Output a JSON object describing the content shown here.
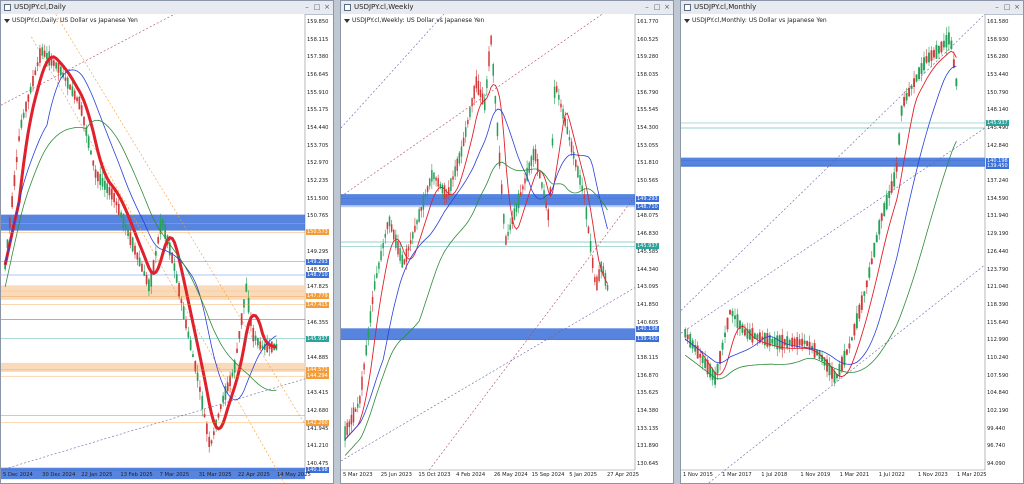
{
  "windows": [
    {
      "id": "daily",
      "title": "USDJPY.cl,Daily",
      "symbol_label": "USDJPY.cl,Daily:  US Dollar vs Japanese Yen",
      "y_labels": [
        "159.850",
        "158.115",
        "157.380",
        "156.645",
        "155.910",
        "155.175",
        "154.440",
        "153.705",
        "152.970",
        "152.235",
        "151.500",
        "150.765",
        "150.030",
        "149.295",
        "148.560",
        "147.825",
        "147.090",
        "146.355",
        "145.620",
        "144.885",
        "144.150",
        "143.415",
        "142.680",
        "141.945",
        "141.210",
        "140.475"
      ],
      "y_range": [
        140.2,
        160.1
      ],
      "x_labels": [
        "5 Dec 2024",
        "30 Dec 2024",
        "22 Jan 2025",
        "13 Feb 2025",
        "7 Mar 2025",
        "31 Mar 2025",
        "22 Apr 2025",
        "14 May 2025"
      ],
      "price_tags": [
        {
          "text": "150.573",
          "value": 150.573,
          "color": "#f39c3a"
        },
        {
          "text": "149.293",
          "value": 149.293,
          "color": "#3a6fd8"
        },
        {
          "text": "148.710",
          "value": 148.71,
          "color": "#3a6fd8"
        },
        {
          "text": "147.779",
          "value": 147.779,
          "color": "#f39c3a"
        },
        {
          "text": "147.415",
          "value": 147.415,
          "color": "#f39c3a"
        },
        {
          "text": "145.937",
          "value": 145.937,
          "color": "#2aa39a"
        },
        {
          "text": "144.571",
          "value": 144.571,
          "color": "#f39c3a"
        },
        {
          "text": "144.294",
          "value": 144.294,
          "color": "#f39c3a"
        },
        {
          "text": "142.260",
          "value": 142.26,
          "color": "#f39c3a"
        },
        {
          "text": "140.198",
          "value": 140.198,
          "color": "#3a6fd8"
        }
      ]
    },
    {
      "id": "weekly",
      "title": "USDJPY.cl,Weekly",
      "symbol_label": "USDJPY.cl,Weekly:  US Dollar vs Japanese Yen",
      "y_labels": [
        "161.770",
        "160.525",
        "159.280",
        "158.035",
        "156.790",
        "155.545",
        "154.300",
        "153.055",
        "151.810",
        "150.565",
        "149.320",
        "148.075",
        "146.830",
        "145.585",
        "144.340",
        "143.095",
        "141.850",
        "140.605",
        "139.360",
        "138.115",
        "136.870",
        "135.625",
        "134.380",
        "133.135",
        "131.890",
        "130.645"
      ],
      "y_range": [
        130.3,
        162.2
      ],
      "x_labels": [
        "5 Mar 2023",
        "25 Jun 2023",
        "15 Oct 2023",
        "4 Feb 2024",
        "26 May 2024",
        "15 Sep 2024",
        "5 Jan 2025",
        "27 Apr 2025"
      ],
      "price_tags": [
        {
          "text": "149.293",
          "value": 149.293,
          "color": "#3a6fd8"
        },
        {
          "text": "148.710",
          "value": 148.71,
          "color": "#3a6fd8"
        },
        {
          "text": "145.937",
          "value": 145.937,
          "color": "#2aa39a"
        },
        {
          "text": "140.198",
          "value": 140.198,
          "color": "#3a6fd8"
        },
        {
          "text": "139.450",
          "value": 139.45,
          "color": "#3a6fd8"
        }
      ]
    },
    {
      "id": "monthly",
      "title": "USDJPY.cl,Monthly",
      "symbol_label": "USDJPY.cl,Monthly:  US Dollar vs Japanese Yen",
      "y_labels": [
        "161.580",
        "158.930",
        "156.280",
        "153.440",
        "150.790",
        "148.140",
        "145.490",
        "142.840",
        "140.190",
        "137.240",
        "134.590",
        "131.940",
        "129.190",
        "126.440",
        "123.790",
        "121.040",
        "118.390",
        "115.640",
        "112.990",
        "110.240",
        "107.590",
        "104.840",
        "102.190",
        "99.440",
        "96.740",
        "94.090"
      ],
      "y_range": [
        93.2,
        162.5
      ],
      "x_labels": [
        "1 Nov 2015",
        "1 Mar 2017",
        "1 Jul 2018",
        "1 Nov 2019",
        "1 Mar 2021",
        "1 Jul 2022",
        "1 Nov 2023",
        "1 Mar 2025"
      ],
      "price_tags": [
        {
          "text": "145.937",
          "value": 145.937,
          "color": "#2aa39a"
        },
        {
          "text": "140.198",
          "value": 140.198,
          "color": "#3a6fd8"
        },
        {
          "text": "139.450",
          "value": 139.45,
          "color": "#3a6fd8"
        }
      ]
    }
  ]
}
